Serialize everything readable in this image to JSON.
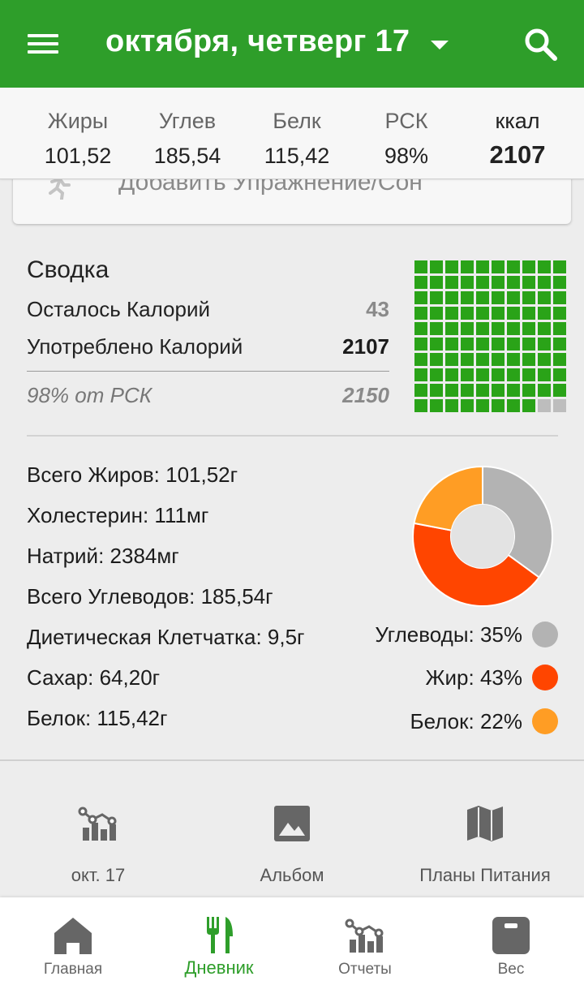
{
  "app_bar": {
    "date_title": "октября, четверг 17"
  },
  "nutrient_header": [
    {
      "label": "Жиры",
      "value": "101,52"
    },
    {
      "label": "Углев",
      "value": "185,54"
    },
    {
      "label": "Белк",
      "value": "115,42"
    },
    {
      "label": "РСК",
      "value": "98%"
    },
    {
      "label": "ккал",
      "value": "2107"
    }
  ],
  "add_exercise": {
    "label": "Добавить Упражнение/Сон"
  },
  "summary": {
    "title": "Сводка",
    "remaining_label": "Осталось Калорий",
    "remaining_value": "43",
    "consumed_label": "Употреблено Калорий",
    "consumed_value": "2107",
    "rsk_label": "98% от РСК",
    "rsk_value": "2150",
    "filled_fraction": 0.98
  },
  "details": [
    "Всего Жиров: 101,52г",
    "Холестерин: 111мг",
    "Натрий: 2384мг",
    "Всего Углеводов: 185,54г",
    "Диетическая Клетчатка: 9,5г",
    "Сахар: 64,20г",
    "Белок: 115,42г"
  ],
  "chart_data": {
    "type": "pie",
    "title": "",
    "categories": [
      "Углеводы",
      "Жир",
      "Белок"
    ],
    "values": [
      35,
      43,
      22
    ],
    "colors": [
      "#b3b3b3",
      "#ff4500",
      "#ff9d24"
    ]
  },
  "legend": [
    {
      "text": "Углеводы: 35%",
      "color": "#b3b3b3"
    },
    {
      "text": "Жир: 43%",
      "color": "#ff4500"
    },
    {
      "text": "Белок: 22%",
      "color": "#ff9d24"
    }
  ],
  "quick_actions": [
    {
      "label": "окт. 17",
      "icon": "chart-report-icon"
    },
    {
      "label": "Альбом",
      "icon": "image-album-icon"
    },
    {
      "label": "Планы Питания",
      "icon": "map-plan-icon"
    }
  ],
  "bottom_nav": [
    {
      "label": "Главная",
      "icon": "home-icon",
      "active": false
    },
    {
      "label": "Дневник",
      "icon": "fork-knife-icon",
      "active": true
    },
    {
      "label": "Отчеты",
      "icon": "chart-report-icon",
      "active": false
    },
    {
      "label": "Вес",
      "icon": "scale-icon",
      "active": false
    }
  ],
  "colors": {
    "brand_green": "#2e9e2a",
    "grid_filled": "#2aa318",
    "grid_empty": "#bdbdbd"
  }
}
